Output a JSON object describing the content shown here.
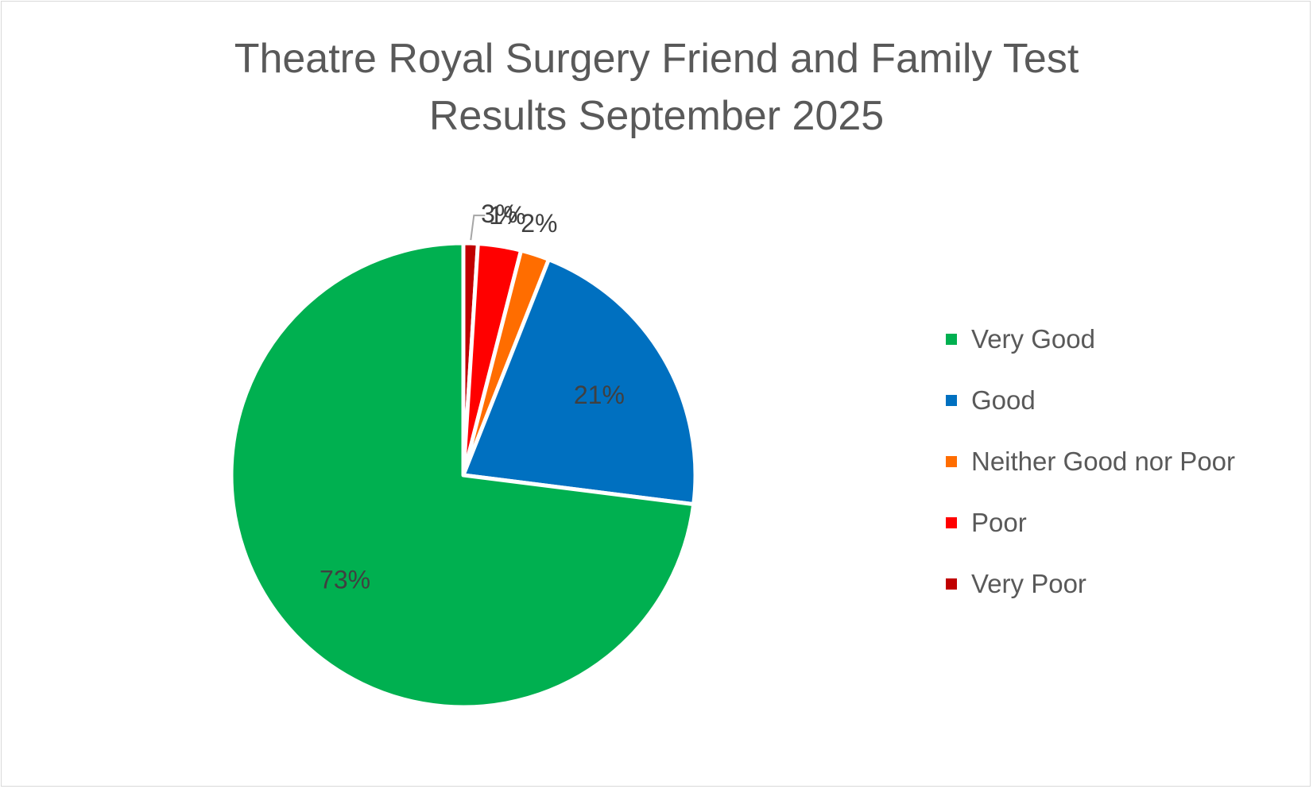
{
  "chart_data": {
    "type": "pie",
    "title": "Theatre Royal Surgery Friend and Family Test Results September 2025",
    "title_lines": [
      "Theatre Royal Surgery Friend and Family Test",
      "Results September 2025"
    ],
    "categories": [
      "Very Good",
      "Good",
      "Neither Good nor Poor",
      "Poor",
      "Very Poor"
    ],
    "values": [
      73,
      21,
      2,
      3,
      1
    ],
    "labels": [
      "73%",
      "21%",
      "2%",
      "3%",
      "1%"
    ],
    "colors": [
      "#00b050",
      "#0070c0",
      "#ff6d00",
      "#ff0000",
      "#c00000"
    ],
    "legend_position": "right",
    "slice_order": "clockwise from top: Very Poor, Poor, Neither Good nor Poor, Good, Very Good"
  }
}
